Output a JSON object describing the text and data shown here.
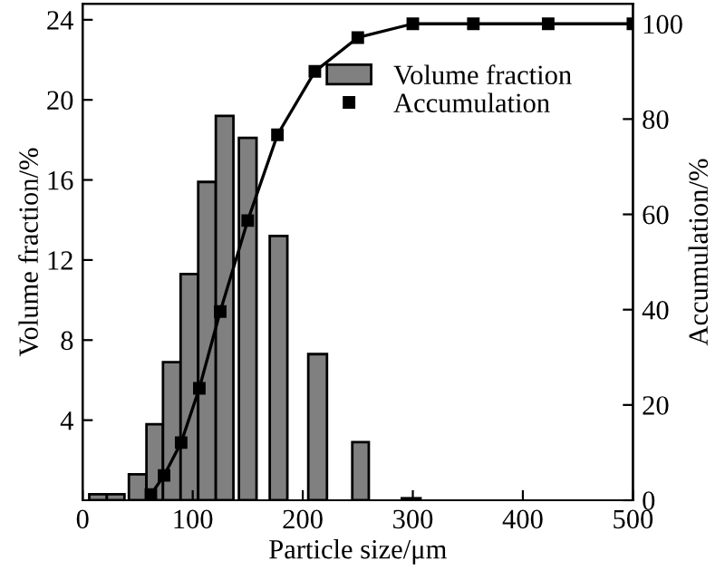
{
  "chart_data": {
    "type": "histogram",
    "xlabel": "Particle size/μm",
    "ylabel": "Volume fraction/%",
    "y2label": "Accumulation/%",
    "bins": [
      6,
      22,
      38,
      42,
      58,
      73,
      89,
      105,
      121,
      137,
      142,
      158,
      170,
      186,
      205,
      222,
      245,
      260,
      290,
      307
    ],
    "series": [
      {
        "name": "Volume fraction",
        "color": "#808080",
        "values": [
          0.3,
          0.3,
          0,
          1.3,
          3.8,
          6.9,
          11.3,
          15.9,
          19.2,
          0,
          18.1,
          0,
          13.2,
          0,
          7.3,
          0,
          2.9,
          0,
          0.1
        ]
      },
      {
        "name": "Accumulation",
        "type": "line",
        "axis": "y2",
        "color": "#000000",
        "marker": "square",
        "x": [
          62,
          74,
          89.5,
          106,
          125,
          150,
          177,
          211,
          250,
          300,
          355,
          423,
          500
        ],
        "values": [
          1.2,
          5.2,
          12.1,
          23.5,
          39.6,
          58.7,
          76.7,
          90,
          97.1,
          100,
          100,
          100,
          100
        ]
      }
    ],
    "xlim": [
      0,
      500
    ],
    "xticks": [
      0,
      100,
      200,
      300,
      400,
      500
    ],
    "ylim": [
      0,
      24.8
    ],
    "yticks": [
      4,
      8,
      12,
      16,
      20,
      24
    ],
    "y2lim": [
      0,
      104.2
    ],
    "y2ticks": [
      0,
      20,
      40,
      60,
      80,
      100
    ],
    "legend": "top right",
    "grid": false
  }
}
